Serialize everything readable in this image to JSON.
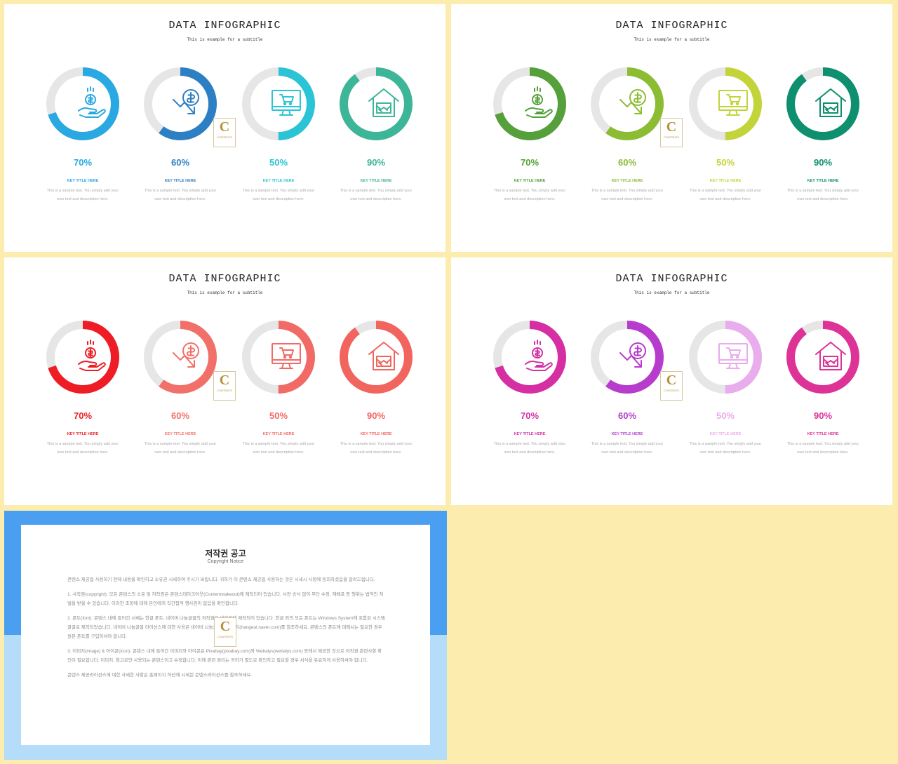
{
  "slides": [
    {
      "title": "DATA INFOGRAPHIC",
      "subtitle": "This is example  for a subtitle",
      "watermark": {
        "letter": "C",
        "text": "CONTENTS"
      },
      "items": [
        {
          "percent_label": "70%",
          "percent": 70,
          "key_title": "KEY TITLE HERE",
          "desc1": "This is a sample text. You simply add your",
          "desc2": "own text and description here.",
          "color": "#29a8e1",
          "icon": "hand-coin-icon"
        },
        {
          "percent_label": "60%",
          "percent": 60,
          "key_title": "KEY TITLE HERE",
          "desc1": "This is a sample text. You simply add your",
          "desc2": "own text and description here.",
          "color": "#2d7fc4",
          "icon": "dollar-down-icon"
        },
        {
          "percent_label": "50%",
          "percent": 50,
          "key_title": "KEY TITLE HERE",
          "desc1": "This is a sample text. You simply add your",
          "desc2": "own text and description here.",
          "color": "#2bc4d6",
          "icon": "monitor-cart-icon"
        },
        {
          "percent_label": "90%",
          "percent": 90,
          "key_title": "KEY TITLE HERE",
          "desc1": "This is a sample text. You simply add your",
          "desc2": "own text and description here.",
          "color": "#3db597",
          "icon": "house-handshake-icon"
        }
      ]
    },
    {
      "title": "DATA INFOGRAPHIC",
      "subtitle": "This is example  for a subtitle",
      "watermark": {
        "letter": "C",
        "text": "CONTENTS"
      },
      "items": [
        {
          "percent_label": "70%",
          "percent": 70,
          "key_title": "KEY TITLE HERE",
          "desc1": "This is a sample text. You simply add your",
          "desc2": "own text and description here.",
          "color": "#55a03a",
          "icon": "hand-coin-icon"
        },
        {
          "percent_label": "60%",
          "percent": 60,
          "key_title": "KEY TITLE HERE",
          "desc1": "This is a sample text. You simply add your",
          "desc2": "own text and description here.",
          "color": "#8bbc32",
          "icon": "dollar-down-icon"
        },
        {
          "percent_label": "50%",
          "percent": 50,
          "key_title": "KEY TITLE HERE",
          "desc1": "This is a sample text. You simply add your",
          "desc2": "own text and description here.",
          "color": "#c3d43a",
          "icon": "monitor-cart-icon"
        },
        {
          "percent_label": "90%",
          "percent": 90,
          "key_title": "KEY TITLE HERE",
          "desc1": "This is a sample text. You simply add your",
          "desc2": "own text and description here.",
          "color": "#0e8f6d",
          "icon": "house-handshake-icon"
        }
      ]
    },
    {
      "title": "DATA INFOGRAPHIC",
      "subtitle": "This is example  for a subtitle",
      "watermark": {
        "letter": "C",
        "text": "CONTENTS"
      },
      "items": [
        {
          "percent_label": "70%",
          "percent": 70,
          "key_title": "KEY TITLE HERE",
          "desc1": "This is a sample text. You simply add your",
          "desc2": "own text and description here.",
          "color": "#ee1c24",
          "icon": "hand-coin-icon"
        },
        {
          "percent_label": "60%",
          "percent": 60,
          "key_title": "KEY TITLE HERE",
          "desc1": "This is a sample text. You simply add your",
          "desc2": "own text and description here.",
          "color": "#f2706a",
          "icon": "dollar-down-icon"
        },
        {
          "percent_label": "50%",
          "percent": 50,
          "key_title": "KEY TITLE HERE",
          "desc1": "This is a sample text. You simply add your",
          "desc2": "own text and description here.",
          "color": "#f26a66",
          "icon": "monitor-cart-icon"
        },
        {
          "percent_label": "90%",
          "percent": 90,
          "key_title": "KEY TITLE HERE",
          "desc1": "This is a sample text. You simply add your",
          "desc2": "own text and description here.",
          "color": "#f2655f",
          "icon": "house-handshake-icon"
        }
      ]
    },
    {
      "title": "DATA INFOGRAPHIC",
      "subtitle": "This is example  for a subtitle",
      "watermark": {
        "letter": "C",
        "text": "CONTENTS"
      },
      "items": [
        {
          "percent_label": "70%",
          "percent": 70,
          "key_title": "KEY TITLE HERE",
          "desc1": "This is a sample text. You simply add your",
          "desc2": "own text and description here.",
          "color": "#d62fa3",
          "icon": "hand-coin-icon"
        },
        {
          "percent_label": "60%",
          "percent": 60,
          "key_title": "KEY TITLE HERE",
          "desc1": "This is a sample text. You simply add your",
          "desc2": "own text and description here.",
          "color": "#b73bcd",
          "icon": "dollar-down-icon"
        },
        {
          "percent_label": "50%",
          "percent": 50,
          "key_title": "KEY TITLE HERE",
          "desc1": "This is a sample text. You simply add your",
          "desc2": "own text and description here.",
          "color": "#e9acec",
          "icon": "monitor-cart-icon"
        },
        {
          "percent_label": "90%",
          "percent": 90,
          "key_title": "KEY TITLE HERE",
          "desc1": "This is a sample text. You simply add your",
          "desc2": "own text and description here.",
          "color": "#dd3296",
          "icon": "house-handshake-icon"
        }
      ]
    }
  ],
  "notice": {
    "title": "저작권 공고",
    "subtitle": "Copyright Notice",
    "watermark": {
      "letter": "C",
      "text": "CONTENTS"
    },
    "paragraphs": [
      "콘텐스 제공업 사용하기 전에 내용을 확인하고 소유권 시세하여 주시기 바랍니다. 귀하가 이 콘텐스 제공업 사용하는 것은 시세시 사항에 동의하셨음을 알려드립니다.",
      "1. 사작권(copyright): 모든 콘텐스의 소유 및 저작권은 콘텐스테이크아웃(Contentstakeout)에 제작되어 있습니다. 사전 승낙 없이 무단 수정, 재배포 등 행위는 법적인 처벌을 받을 수 있습니다. 이러한 조항에 대해 본인에게 직간접적 행사권이 없음을 확인합니다.",
      "2. 폰트(font): 콘텐스 내에 들어간 서체는 한글 폰트, 네이버 나눔글꼴의 저작권은 네이버에 제작되어 있습니다. 한글 외의 모든 폰트는 Windows System에 포함된 시스템 글꼴로 제작되었습니다. 네이버 나눔글꼴 라이선스에 대한 사용은 네이버 나눔글꼴 홈페이지(hangeul.naver.com)를 참조하세요. 콘텐스의 폰트에 대해서는 필요한 경우 원본 폰트를 구입하셔야 합니다.",
      "3. 이미지(image) & 아이콘(icon): 콘텐스 내에 들어간 이미지와 아이콘은 Pixabay(pixabay.com)와 Webalys(webalys.com) 등에서 제공한 것으로 저작권 관련사항 확인이 필요합니다. 이미지, 참고로만 사용되는 콘텐스이고 수정합니다. 이에 관련 권리는 귀하가 별도로 확인하고 필요할 경우 서식을 유료하게 사용하셔야 합니다.",
      "콘텐스 제공라이선스에 대한 사세한 사항은 홈페이지 하단에 시세된 콘텐스라이선스를 참조하세요."
    ]
  }
}
